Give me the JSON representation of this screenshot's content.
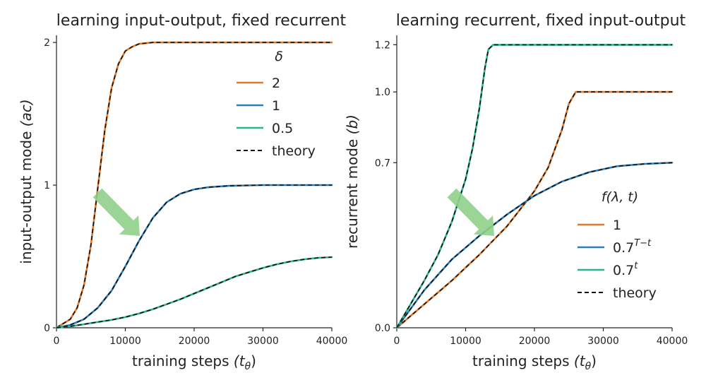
{
  "chart_data": [
    {
      "type": "line",
      "title": "learning input-output, fixed recurrent",
      "xlabel": "training steps",
      "xlabel_sym": "(t",
      "xlabel_sub": "θ",
      "xlabel_close": ")",
      "ylabel": "input-output mode",
      "ylabel_sym": "(ac)",
      "xlim": [
        0,
        40000
      ],
      "ylim": [
        0,
        2.05
      ],
      "xticks": [
        0,
        10000,
        20000,
        30000,
        40000
      ],
      "xtick_labels": [
        "0",
        "10000",
        "20000",
        "30000",
        "40000"
      ],
      "yticks": [
        0,
        1,
        2
      ],
      "ytick_labels": [
        "0",
        "1",
        "2"
      ],
      "legend_title": "δ",
      "legend_placement": "top-right",
      "grid": false,
      "series": [
        {
          "name": "2",
          "color": "#e07a2e",
          "x": [
            0,
            2000,
            3000,
            4000,
            5000,
            6000,
            7000,
            8000,
            9000,
            10000,
            11000,
            12000,
            14000,
            16000,
            20000,
            30000,
            40000
          ],
          "y": [
            0,
            0.06,
            0.14,
            0.3,
            0.58,
            0.98,
            1.38,
            1.68,
            1.85,
            1.94,
            1.97,
            1.99,
            2.0,
            2.0,
            2.0,
            2.0,
            2.0
          ]
        },
        {
          "name": "1",
          "color": "#2c7fb8",
          "x": [
            0,
            2000,
            4000,
            6000,
            8000,
            10000,
            12000,
            14000,
            16000,
            18000,
            20000,
            22000,
            25000,
            30000,
            35000,
            40000
          ],
          "y": [
            0,
            0.02,
            0.06,
            0.14,
            0.26,
            0.43,
            0.61,
            0.77,
            0.88,
            0.94,
            0.97,
            0.985,
            0.995,
            1.0,
            1.0,
            1.0
          ]
        },
        {
          "name": "0.5",
          "color": "#2bb38f",
          "x": [
            0,
            2000,
            4000,
            6000,
            8000,
            10000,
            12000,
            14000,
            16000,
            18000,
            20000,
            22000,
            24000,
            26000,
            28000,
            30000,
            32000,
            34000,
            36000,
            38000,
            40000
          ],
          "y": [
            0,
            0.01,
            0.025,
            0.04,
            0.055,
            0.075,
            0.1,
            0.13,
            0.165,
            0.2,
            0.24,
            0.28,
            0.32,
            0.36,
            0.39,
            0.42,
            0.445,
            0.465,
            0.48,
            0.49,
            0.495
          ]
        }
      ],
      "theory_label": "theory",
      "theory_color": "#111111",
      "arrow_color": "#8fd08a"
    },
    {
      "type": "line",
      "title": "learning recurrent, fixed input-output",
      "xlabel": "training steps",
      "xlabel_sym": "(t",
      "xlabel_sub": "θ",
      "xlabel_close": ")",
      "ylabel": "recurrent mode",
      "ylabel_sym": "(b)",
      "xlim": [
        0,
        40000
      ],
      "ylim": [
        0,
        1.24
      ],
      "xticks": [
        0,
        10000,
        20000,
        30000,
        40000
      ],
      "xtick_labels": [
        "0",
        "10000",
        "20000",
        "30000",
        "40000"
      ],
      "yticks": [
        0.0,
        0.7,
        1.0,
        1.2
      ],
      "ytick_labels": [
        "0.0",
        "0.7",
        "1.0",
        "1.2"
      ],
      "legend_title": "f(λ, t)",
      "legend_placement": "lower-right",
      "grid": false,
      "series": [
        {
          "name": "1",
          "name_base": "1",
          "name_sup": "",
          "color": "#e07a2e",
          "x": [
            0,
            4000,
            8000,
            12000,
            16000,
            20000,
            22000,
            24000,
            25000,
            26000,
            30000,
            40000
          ],
          "y": [
            0,
            0.1,
            0.2,
            0.31,
            0.43,
            0.58,
            0.68,
            0.84,
            0.95,
            1.0,
            1.0,
            1.0
          ]
        },
        {
          "name": "0.7^(T−t)",
          "name_base": "0.7",
          "name_sup": "T−t",
          "color": "#2c7fb8",
          "x": [
            0,
            4000,
            8000,
            12000,
            16000,
            20000,
            24000,
            28000,
            32000,
            36000,
            40000
          ],
          "y": [
            0,
            0.16,
            0.29,
            0.39,
            0.48,
            0.56,
            0.62,
            0.66,
            0.685,
            0.695,
            0.7
          ]
        },
        {
          "name": "0.7^t",
          "name_base": "0.7",
          "name_sup": "t",
          "color": "#2bb38f",
          "x": [
            0,
            2000,
            4000,
            6000,
            8000,
            10000,
            11000,
            12000,
            12800,
            13300,
            14000,
            20000,
            40000
          ],
          "y": [
            0,
            0.1,
            0.2,
            0.31,
            0.45,
            0.63,
            0.76,
            0.93,
            1.1,
            1.18,
            1.2,
            1.2,
            1.2
          ]
        }
      ],
      "theory_label": "theory",
      "theory_color": "#111111",
      "arrow_color": "#8fd08a"
    }
  ]
}
